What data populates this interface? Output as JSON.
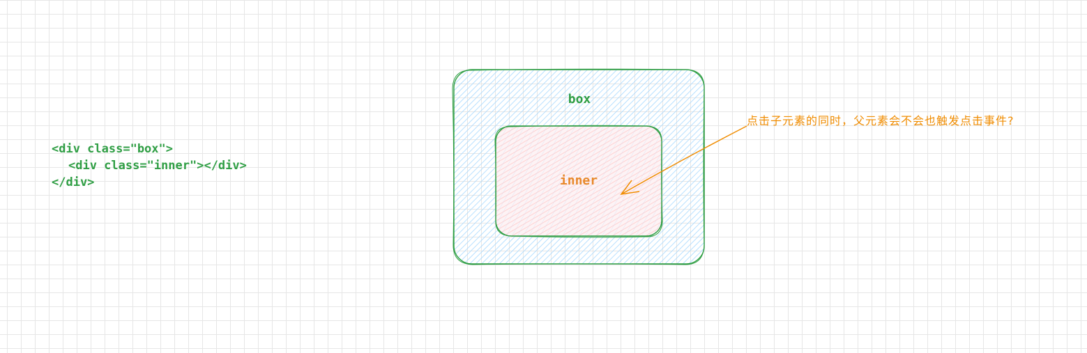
{
  "code": {
    "line1": "<div class=\"box\">",
    "line2": "<div class=\"inner\"></div>",
    "line3": "</div>"
  },
  "box": {
    "label": "box",
    "stroke_color": "#2f9e44",
    "fill_color": "#a5d8ff"
  },
  "inner": {
    "label": "inner",
    "stroke_color": "#2f9e44",
    "fill_color": "#ffc9c9",
    "label_color": "#e8892b"
  },
  "annotation": {
    "text": "点击子元素的同时，父元素会不会也触发点击事件?",
    "color": "#f08c00"
  }
}
